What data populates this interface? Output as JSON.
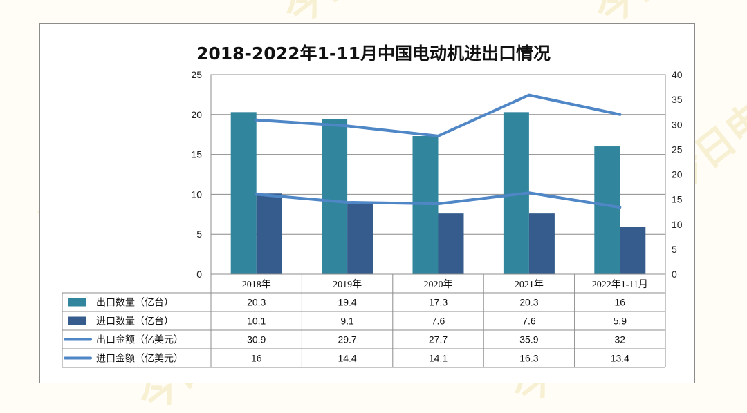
{
  "chart_data": {
    "type": "bar",
    "title": "2018-2022年1-11月中国电动机进出口情况",
    "categories": [
      "2018年",
      "2019年",
      "2020年",
      "2021年",
      "2022年1-11月"
    ],
    "y_left": {
      "ylim": [
        0,
        25
      ],
      "ticks": [
        0,
        5,
        10,
        15,
        20,
        25
      ]
    },
    "y_right": {
      "ylim": [
        0,
        40
      ],
      "ticks": [
        0,
        5,
        10,
        15,
        20,
        25,
        30,
        35,
        40
      ]
    },
    "grid": true,
    "legend": "data-table-below",
    "series": [
      {
        "name": "出口数量（亿台）",
        "kind": "bar",
        "axis": "left",
        "color": "#31859c",
        "values": [
          20.3,
          19.4,
          17.3,
          20.3,
          16
        ],
        "labels": [
          "20.3",
          "19.4",
          "17.3",
          "20.3",
          "16"
        ]
      },
      {
        "name": "进口数量（亿台）",
        "kind": "bar",
        "axis": "left",
        "color": "#355c8d",
        "values": [
          10.1,
          9.1,
          7.6,
          7.6,
          5.9
        ],
        "labels": [
          "10.1",
          "9.1",
          "7.6",
          "7.6",
          "5.9"
        ]
      },
      {
        "name": "出口金额（亿美元）",
        "kind": "line",
        "axis": "right",
        "color": "#4f86c6",
        "values": [
          30.9,
          29.7,
          27.7,
          35.9,
          32
        ],
        "labels": [
          "30.9",
          "29.7",
          "27.7",
          "35.9",
          "32"
        ]
      },
      {
        "name": "进口金额（亿美元）",
        "kind": "line",
        "axis": "right",
        "color": "#4f86c6",
        "values": [
          16,
          14.4,
          14.1,
          16.3,
          13.4
        ],
        "labels": [
          "16",
          "14.4",
          "14.1",
          "16.3",
          "13.4"
        ]
      }
    ]
  },
  "watermark": {
    "text": "今日电机",
    "color": "#f3e7b8"
  }
}
